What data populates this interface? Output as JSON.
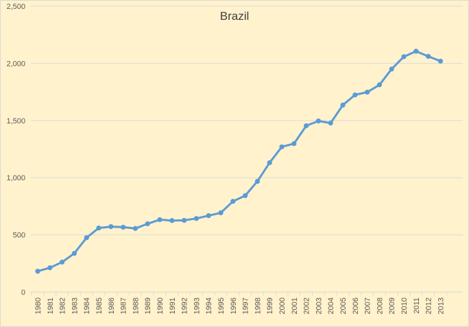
{
  "chart_data": {
    "type": "line",
    "title": "Brazil",
    "xlabel": "",
    "ylabel": "",
    "ylim": [
      0,
      2500
    ],
    "yticks": [
      0,
      500,
      1000,
      1500,
      2000,
      2500
    ],
    "ytick_labels": [
      "0",
      "500",
      "1,000",
      "1,500",
      "2,000",
      "2,500"
    ],
    "grid": true,
    "legend": "none",
    "line_color": "#5b9bd5",
    "background_color": "#fff2cc",
    "gridline_color": "#d9d9d9",
    "categories": [
      "1980",
      "1981",
      "1982",
      "1983",
      "1984",
      "1985",
      "1986",
      "1987",
      "1988",
      "1989",
      "1990",
      "1991",
      "1992",
      "1993",
      "1994",
      "1995",
      "1996",
      "1997",
      "1998",
      "1999",
      "2000",
      "2001",
      "2002",
      "2003",
      "2004",
      "2005",
      "2006",
      "2007",
      "2008",
      "2009",
      "2010",
      "2011",
      "2012",
      "2013"
    ],
    "series": [
      {
        "values": [
          182,
          212,
          262,
          338,
          475,
          560,
          572,
          567,
          556,
          597,
          633,
          625,
          627,
          643,
          668,
          693,
          793,
          843,
          968,
          1131,
          1270,
          1298,
          1454,
          1496,
          1478,
          1635,
          1724,
          1748,
          1812,
          1950,
          2058,
          2106,
          2061,
          2019
        ]
      }
    ]
  }
}
